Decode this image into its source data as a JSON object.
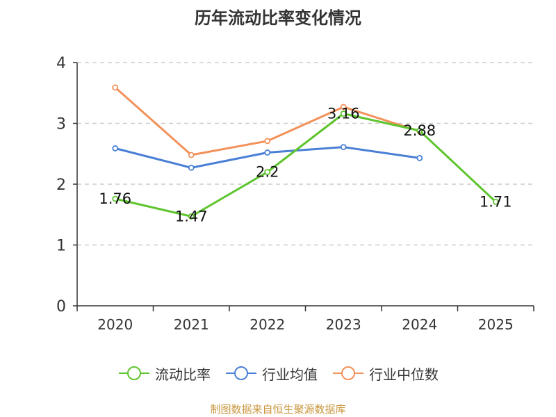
{
  "chart_data": {
    "type": "line",
    "title": "历年流动比率变化情况",
    "categories": [
      "2020",
      "2021",
      "2022",
      "2023",
      "2024",
      "2025"
    ],
    "ylim": [
      0,
      4
    ],
    "yticks": [
      "0",
      "1",
      "2",
      "3",
      "4"
    ],
    "grid": true,
    "legend_position": "bottom",
    "series": [
      {
        "name": "流动比率",
        "color": "#5ec52e",
        "values": [
          1.76,
          1.47,
          2.2,
          3.16,
          2.88,
          1.71
        ],
        "labels": [
          "1.76",
          "1.47",
          "2.2",
          "3.16",
          "2.88",
          "1.71"
        ]
      },
      {
        "name": "行业均值",
        "color": "#4a7fd6",
        "values": [
          2.59,
          2.27,
          2.52,
          2.61,
          2.43,
          null
        ]
      },
      {
        "name": "行业中位数",
        "color": "#f2915a",
        "values": [
          3.59,
          2.48,
          2.71,
          3.27,
          2.87,
          null
        ]
      }
    ],
    "source": "制图数据来自恒生聚源数据库"
  }
}
